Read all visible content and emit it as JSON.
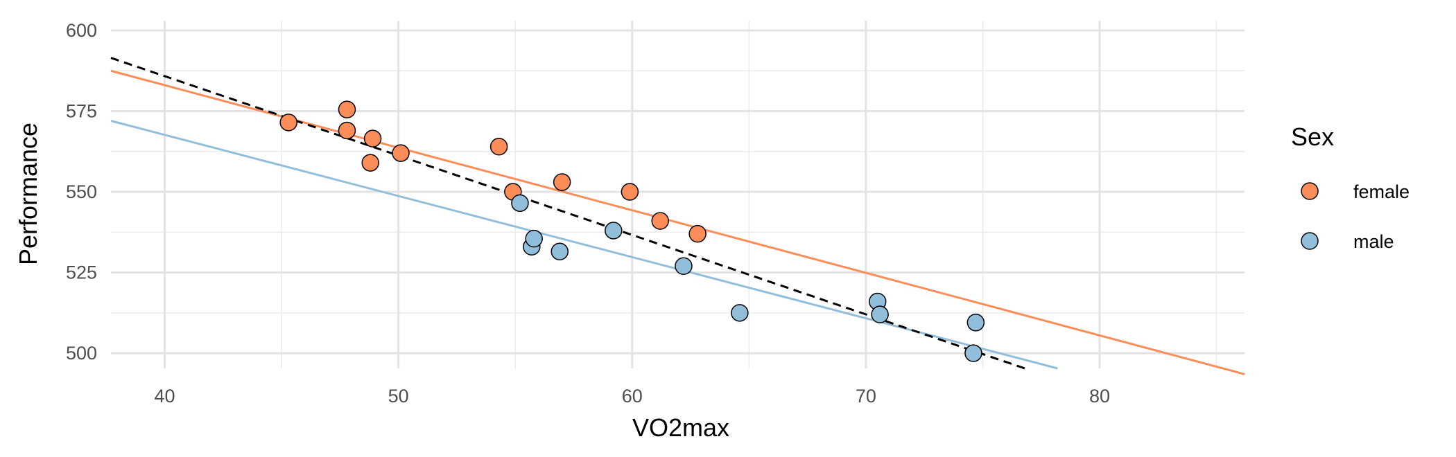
{
  "chart_data": {
    "type": "scatter",
    "title": "",
    "xlabel": "VO2max",
    "ylabel": "Performance",
    "xlim": [
      37.7,
      86.2
    ],
    "ylim": [
      495.3,
      603.0
    ],
    "xticks": [
      40,
      50,
      60,
      70,
      80
    ],
    "yticks": [
      500,
      525,
      550,
      575,
      600
    ],
    "grid": true,
    "legend": {
      "title": "Sex",
      "position": "right"
    },
    "series": [
      {
        "name": "female",
        "color": "#fc8d59",
        "points": [
          {
            "x": 45.3,
            "y": 571.5
          },
          {
            "x": 47.8,
            "y": 575.5
          },
          {
            "x": 47.8,
            "y": 569.0
          },
          {
            "x": 48.9,
            "y": 566.5
          },
          {
            "x": 48.8,
            "y": 559.0
          },
          {
            "x": 50.1,
            "y": 562.0
          },
          {
            "x": 54.3,
            "y": 564.0
          },
          {
            "x": 54.9,
            "y": 550.0
          },
          {
            "x": 57.0,
            "y": 553.0
          },
          {
            "x": 59.9,
            "y": 550.0
          },
          {
            "x": 61.2,
            "y": 541.0
          },
          {
            "x": 62.8,
            "y": 537.0
          }
        ],
        "fit": {
          "x": [
            37.7,
            86.2
          ],
          "y": [
            587.5,
            493.5
          ]
        }
      },
      {
        "name": "male",
        "color": "#91bfdb",
        "points": [
          {
            "x": 55.2,
            "y": 546.5
          },
          {
            "x": 55.7,
            "y": 533.0
          },
          {
            "x": 55.8,
            "y": 535.5
          },
          {
            "x": 56.9,
            "y": 531.5
          },
          {
            "x": 59.2,
            "y": 538.0
          },
          {
            "x": 62.2,
            "y": 527.0
          },
          {
            "x": 64.6,
            "y": 512.5
          },
          {
            "x": 70.5,
            "y": 516.0
          },
          {
            "x": 70.6,
            "y": 512.0
          },
          {
            "x": 74.6,
            "y": 500.0
          },
          {
            "x": 74.7,
            "y": 509.5
          }
        ],
        "fit": {
          "x": [
            37.7,
            78.2
          ],
          "y": [
            572.0,
            495.3
          ]
        }
      }
    ],
    "overall_fit": {
      "style": "dashed",
      "color": "#000000",
      "x": [
        37.7,
        76.8
      ],
      "y": [
        591.5,
        495.3
      ]
    }
  }
}
